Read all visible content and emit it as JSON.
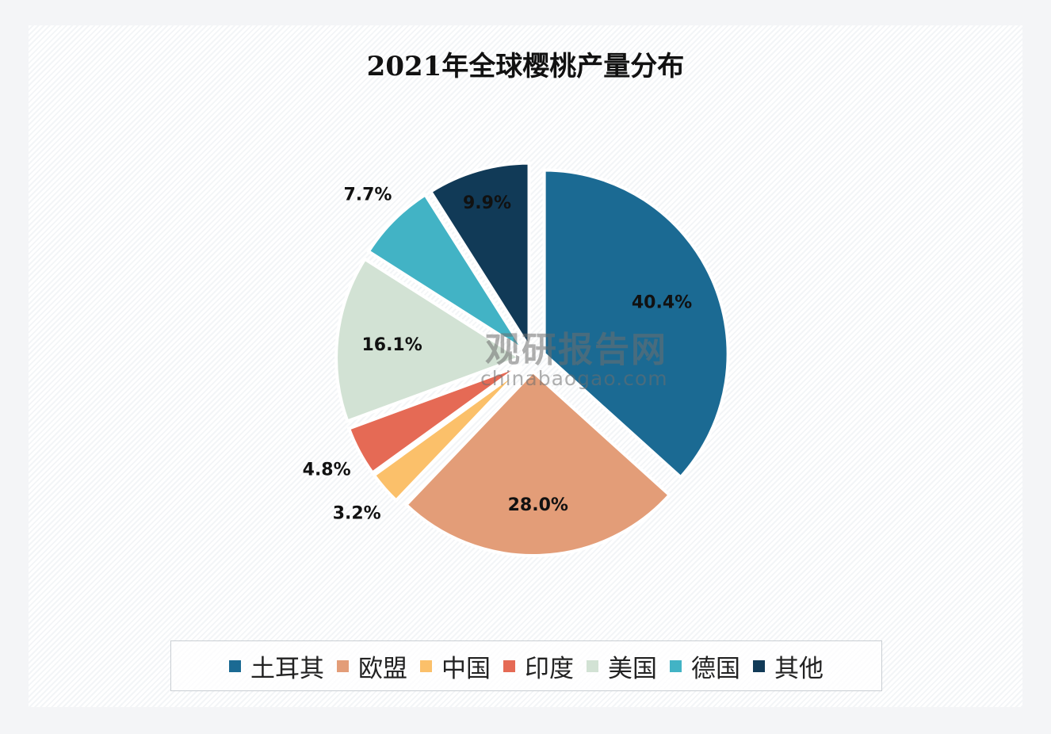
{
  "chart_data": {
    "type": "pie",
    "title": "2021年全球樱桃产量分布",
    "exploded": true,
    "start": "12 o'clock, clockwise",
    "legend_position": "bottom",
    "slices": [
      {
        "name": "土耳其",
        "value": 40.4,
        "label": "40.4%",
        "color": "#1b6a93"
      },
      {
        "name": "欧盟",
        "value": 28.0,
        "label": "28.0%",
        "color": "#e39d78"
      },
      {
        "name": "中国",
        "value": 3.2,
        "label": "3.2%",
        "color": "#fbc06a"
      },
      {
        "name": "印度",
        "value": 4.8,
        "label": "4.8%",
        "color": "#e56a55"
      },
      {
        "name": "美国",
        "value": 16.1,
        "label": "16.1%",
        "color": "#d2e2d4"
      },
      {
        "name": "德国",
        "value": 7.7,
        "label": "7.7%",
        "color": "#42b3c5"
      },
      {
        "name": "其他",
        "value": 9.9,
        "label": "9.9%",
        "color": "#113a57"
      }
    ]
  },
  "watermark": {
    "name": "观研报告网",
    "url": "chinabaogao.com"
  }
}
